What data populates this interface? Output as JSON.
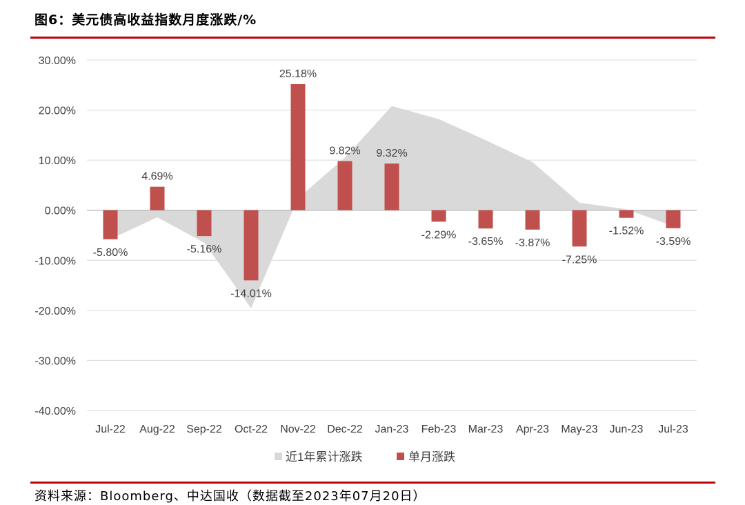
{
  "header": {
    "title": "图6：美元债高收益指数月度涨跌/%"
  },
  "footer": {
    "source": "资料来源：Bloomberg、中达国收（数据截至2023年07月20日）"
  },
  "colors": {
    "bar": "#c0504d",
    "area": "#d9d9d9",
    "rule": "#c0000a",
    "grid": "#d9d9d9",
    "text": "#404040"
  },
  "chart_data": {
    "type": "bar",
    "title": "美元债高收益指数月度涨跌/%",
    "categories": [
      "Jul-22",
      "Aug-22",
      "Sep-22",
      "Oct-22",
      "Nov-22",
      "Dec-22",
      "Jan-23",
      "Feb-23",
      "Mar-23",
      "Apr-23",
      "May-23",
      "Jun-23",
      "Jul-23"
    ],
    "ylim": [
      -40,
      30
    ],
    "yticks": [
      30,
      20,
      10,
      0,
      -10,
      -20,
      -30,
      -40
    ],
    "ytick_labels": [
      "30.00%",
      "20.00%",
      "10.00%",
      "0.00%",
      "-10.00%",
      "-20.00%",
      "-30.00%",
      "-40.00%"
    ],
    "series": [
      {
        "name": "近1年累计涨跌",
        "type": "area",
        "values": [
          -5.8,
          -1.4,
          -6.5,
          -19.6,
          2.4,
          10.5,
          20.8,
          18.2,
          14.0,
          9.6,
          1.5,
          0.2,
          -3.2
        ]
      },
      {
        "name": "单月涨跌",
        "type": "bar",
        "values": [
          -5.8,
          4.69,
          -5.16,
          -14.01,
          25.18,
          9.82,
          9.32,
          -2.29,
          -3.65,
          -3.87,
          -7.25,
          -1.52,
          -3.59
        ],
        "labels": [
          "-5.80%",
          "4.69%",
          "-5.16%",
          "-14.01%",
          "25.18%",
          "9.82%",
          "9.32%",
          "-2.29%",
          "-3.65%",
          "-3.87%",
          "-7.25%",
          "-1.52%",
          "-3.59%"
        ]
      }
    ],
    "legend": {
      "position": "bottom",
      "entries": [
        "近1年累计涨跌",
        "单月涨跌"
      ]
    },
    "grid": true
  }
}
